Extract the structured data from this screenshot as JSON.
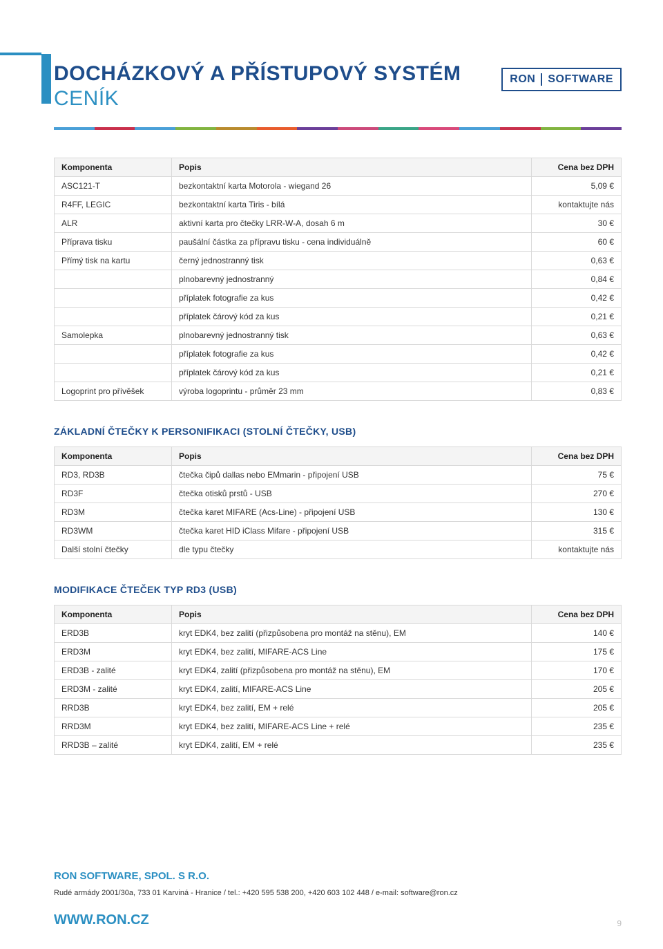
{
  "logo": {
    "left": "RON",
    "right": "SOFTWARE"
  },
  "title": {
    "main": "DOCHÁZKOVÝ A PŘÍSTUPOVÝ SYSTÉM",
    "sub": "CENÍK"
  },
  "color_strip": [
    "#4aa0d8",
    "#c9304c",
    "#4aa0d8",
    "#82b440",
    "#b98b2e",
    "#e85c2d",
    "#6b3f99",
    "#cc4a7a",
    "#3aa587",
    "#d94a7a",
    "#4aa0d8",
    "#c9304c",
    "#82b440",
    "#6b3f99"
  ],
  "headers": {
    "komponenta": "Komponenta",
    "popis": "Popis",
    "cena": "Cena bez DPH"
  },
  "table1": {
    "rows": [
      {
        "k": "ASC121-T",
        "p": "bezkontaktní karta Motorola - wiegand 26",
        "c": "5,09 €"
      },
      {
        "k": "R4FF, LEGIC",
        "p": "bezkontaktní karta Tiris - bílá",
        "c": "kontaktujte nás"
      },
      {
        "k": "ALR",
        "p": "aktivní karta pro čtečky LRR-W-A, dosah 6 m",
        "c": "30 €"
      },
      {
        "k": "Příprava tisku",
        "p": "paušální částka za přípravu tisku - cena individuálně",
        "c": "60 €"
      },
      {
        "k": "Přímý tisk na kartu",
        "p": "černý jednostranný tisk",
        "c": "0,63 €"
      },
      {
        "k": "",
        "p": "plnobarevný jednostranný",
        "c": "0,84 €"
      },
      {
        "k": "",
        "p": "příplatek fotografie za kus",
        "c": "0,42 €"
      },
      {
        "k": "",
        "p": "příplatek čárový kód za kus",
        "c": "0,21 €"
      },
      {
        "k": "Samolepka",
        "p": "plnobarevný jednostranný tisk",
        "c": "0,63 €"
      },
      {
        "k": "",
        "p": "příplatek fotografie za kus",
        "c": "0,42 €"
      },
      {
        "k": "",
        "p": "příplatek čárový kód za kus",
        "c": "0,21 €"
      },
      {
        "k": "Logoprint pro přívěšek",
        "p": "výroba logoprintu - průměr 23 mm",
        "c": "0,83 €"
      }
    ]
  },
  "section2_title": "ZÁKLADNÍ ČTEČKY K PERSONIFIKACI (STOLNÍ ČTEČKY, USB)",
  "table2": {
    "rows": [
      {
        "k": "RD3, RD3B",
        "p": "čtečka čipů dallas nebo EMmarin - připojení USB",
        "c": "75 €"
      },
      {
        "k": "RD3F",
        "p": "čtečka otisků prstů - USB",
        "c": "270 €"
      },
      {
        "k": "RD3M",
        "p": "čtečka karet MIFARE (Acs-Line) - připojení USB",
        "c": "130 €"
      },
      {
        "k": "RD3WM",
        "p": "čtečka karet HID iClass Mifare - připojení USB",
        "c": "315 €"
      },
      {
        "k": "Další stolní čtečky",
        "p": "dle typu čtečky",
        "c": "kontaktujte nás"
      }
    ]
  },
  "section3_title": "MODIFIKACE ČTEČEK TYP RD3 (USB)",
  "table3": {
    "rows": [
      {
        "k": "ERD3B",
        "p": "kryt EDK4, bez zalití (přizpůsobena pro montáž na stěnu), EM",
        "c": "140 €"
      },
      {
        "k": "ERD3M",
        "p": "kryt EDK4, bez zalití, MIFARE-ACS Line",
        "c": "175 €"
      },
      {
        "k": "ERD3B - zalité",
        "p": "kryt EDK4, zalití (přizpůsobena pro montáž na stěnu), EM",
        "c": "170 €"
      },
      {
        "k": "ERD3M - zalité",
        "p": "kryt EDK4, zalití, MIFARE-ACS Line",
        "c": "205 €"
      },
      {
        "k": "RRD3B",
        "p": "kryt EDK4, bez zalití, EM + relé",
        "c": "205 €"
      },
      {
        "k": "RRD3M",
        "p": "kryt EDK4, bez zalití, MIFARE-ACS Line + relé",
        "c": "235 €"
      },
      {
        "k": "RRD3B – zalité",
        "p": "kryt EDK4, zalití, EM + relé",
        "c": "235 €"
      }
    ]
  },
  "footer": {
    "company": "RON SOFTWARE, SPOL. S R.O.",
    "address": "Rudé armády 2001/30a, 733 01  Karviná - Hranice / tel.: +420 595 538 200, +420 603 102 448 / e-mail: software@ron.cz",
    "url": "WWW.RON.CZ",
    "page": "9"
  }
}
